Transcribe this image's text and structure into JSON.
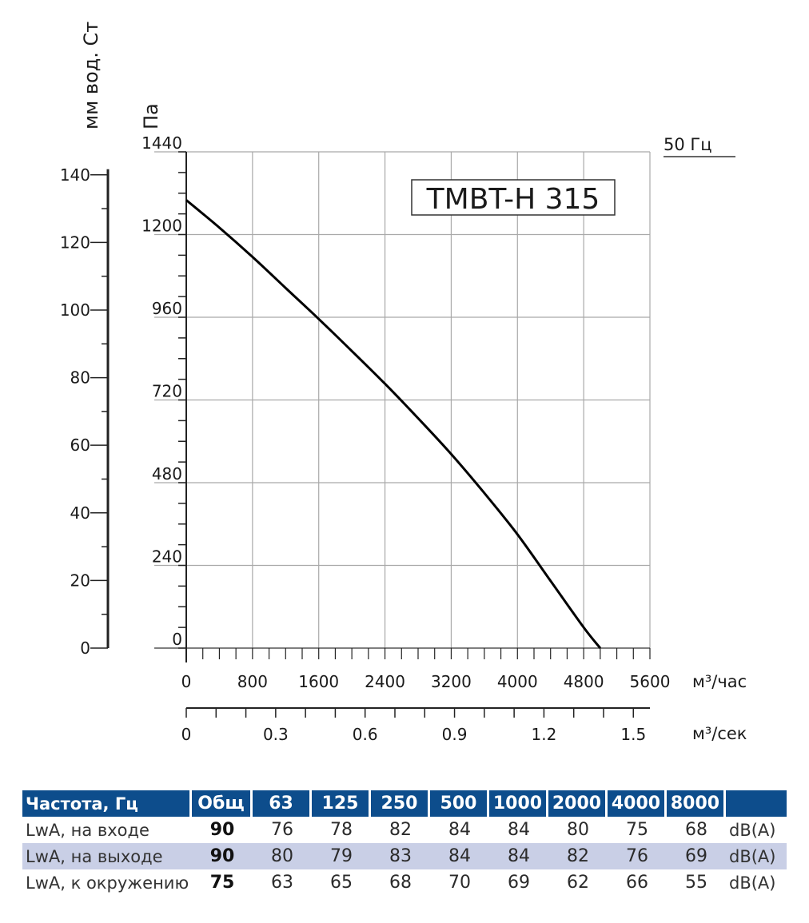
{
  "chart_data": {
    "type": "line",
    "model_label": "TMBT-H 315",
    "frequency_label": "50 Гц",
    "ylabel_left": "мм вод. Ст",
    "ylabel_right": "Па",
    "ylim_pa": [
      0,
      1440
    ],
    "ylim_mm": [
      0,
      146.8
    ],
    "yticks_pa": [
      "0",
      "240",
      "480",
      "720",
      "960",
      "1200",
      "1440"
    ],
    "yticks_mm": [
      "0",
      "20",
      "40",
      "60",
      "80",
      "100",
      "120",
      "140"
    ],
    "xlim_m3h": [
      0,
      5600
    ],
    "xticks_m3h": [
      "0",
      "800",
      "1600",
      "2400",
      "3200",
      "4000",
      "4800",
      "5600"
    ],
    "xlabel_m3h": "м³/час",
    "xlim_m3s": [
      0,
      1.5556
    ],
    "xticks_m3s": [
      "0",
      "0.3",
      "0.6",
      "0.9",
      "1.2",
      "1.5"
    ],
    "xlabel_m3s": "м³/сек",
    "grid": true,
    "series": [
      {
        "x": [
          0,
          400,
          800,
          1200,
          1600,
          2000,
          2400,
          2800,
          3200,
          3600,
          4000,
          4400,
          4800,
          5000
        ],
        "y": [
          1300,
          1220,
          1135,
          1045,
          955,
          862,
          767,
          667,
          563,
          450,
          330,
          195,
          60,
          0
        ]
      }
    ]
  },
  "noise_table": {
    "header": [
      "Частота, Гц",
      "Общ",
      "63",
      "125",
      "250",
      "500",
      "1000",
      "2000",
      "4000",
      "8000",
      ""
    ],
    "rows": [
      {
        "label": "LwA, на входе",
        "total": "90",
        "values": [
          "76",
          "78",
          "82",
          "84",
          "84",
          "80",
          "75",
          "68"
        ],
        "unit": "dB(A)"
      },
      {
        "label": "LwA, на выходе",
        "total": "90",
        "values": [
          "80",
          "79",
          "83",
          "84",
          "84",
          "82",
          "76",
          "69"
        ],
        "unit": "dB(A)"
      },
      {
        "label": "LwA, к окружению",
        "total": "75",
        "values": [
          "63",
          "65",
          "68",
          "70",
          "69",
          "62",
          "66",
          "55"
        ],
        "unit": "dB(A)"
      }
    ]
  }
}
